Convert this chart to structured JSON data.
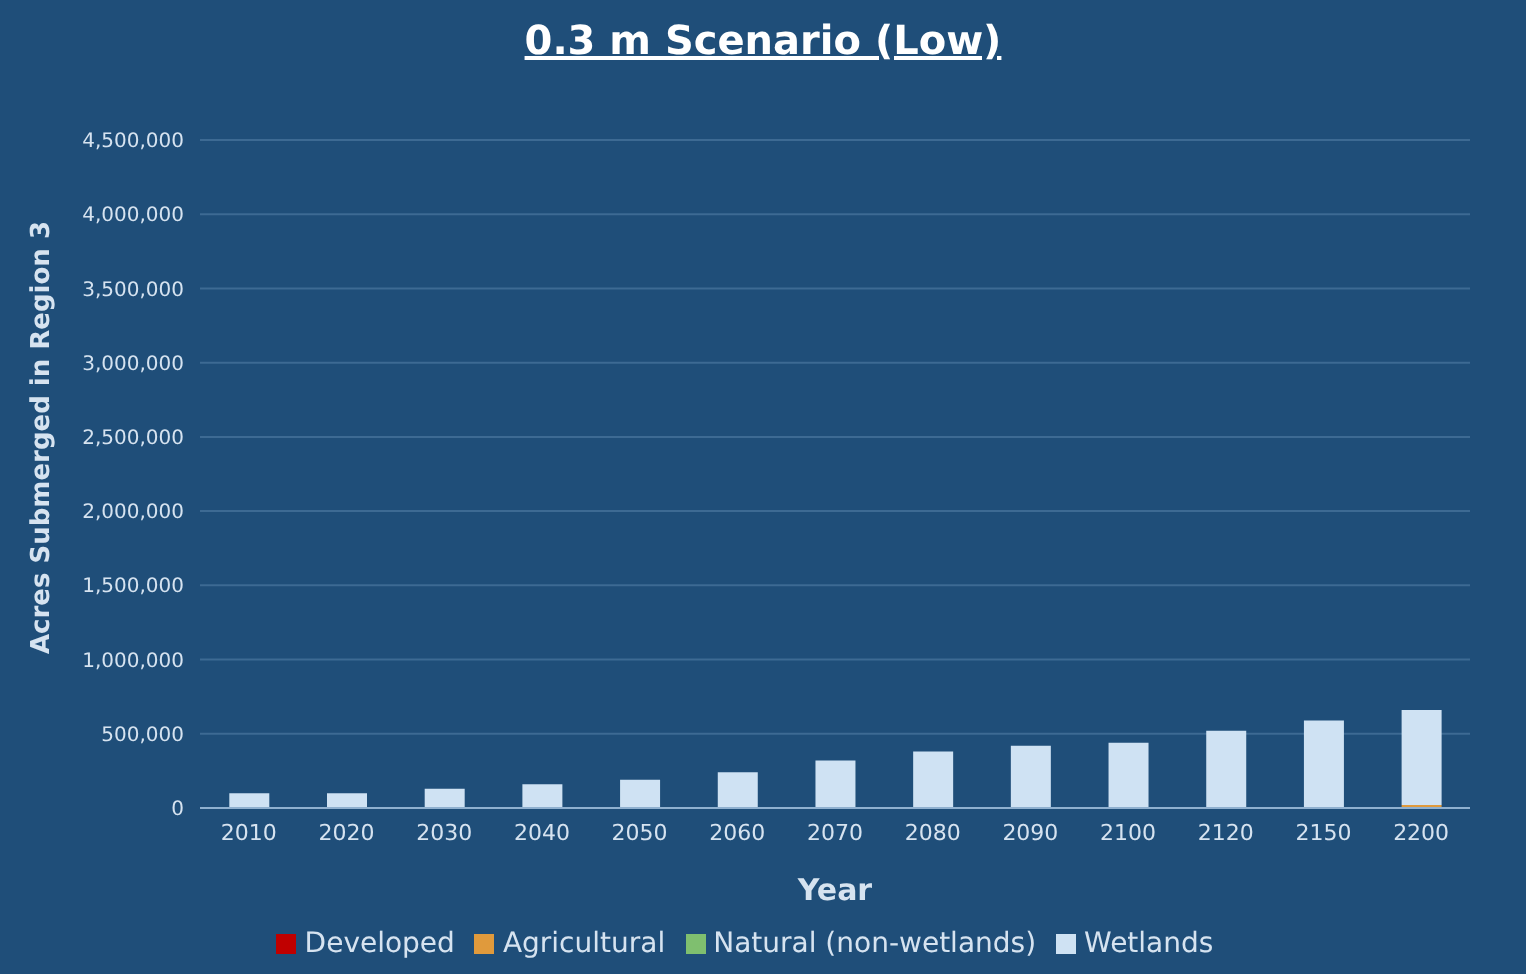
{
  "chart_data": {
    "type": "bar",
    "title": "0.3 m Scenario (Low)",
    "xlabel": "Year",
    "ylabel": "Acres Submerged in Region 3",
    "categories": [
      "2010",
      "2020",
      "2030",
      "2040",
      "2050",
      "2060",
      "2070",
      "2080",
      "2090",
      "2100",
      "2120",
      "2150",
      "2200"
    ],
    "stacked": true,
    "series": [
      {
        "name": "Developed",
        "color": "#c00000",
        "values": [
          0,
          0,
          0,
          0,
          0,
          0,
          0,
          0,
          0,
          0,
          0,
          0,
          0
        ]
      },
      {
        "name": "Agricultural",
        "color": "#e09a3c",
        "values": [
          0,
          0,
          0,
          0,
          0,
          0,
          0,
          0,
          0,
          0,
          0,
          null,
          20000
        ]
      },
      {
        "name": "Natural (non-wetlands)",
        "color": "#7fbf6f",
        "values": [
          0,
          0,
          0,
          0,
          0,
          0,
          0,
          0,
          0,
          0,
          0,
          0,
          0
        ]
      },
      {
        "name": "Wetlands",
        "color": "#cfe2f3",
        "values": [
          100000,
          100000,
          130000,
          160000,
          190000,
          240000,
          320000,
          380000,
          420000,
          440000,
          520000,
          590000,
          640000
        ]
      }
    ],
    "ylim": [
      0,
      4500000
    ],
    "yticks": [
      0,
      {
        "value": 500000,
        "label": "500,000"
      },
      {
        "value": 1000000,
        "label": "1,000,000"
      },
      {
        "value": 1500000,
        "label": "1,500,000"
      },
      {
        "value": 2000000,
        "label": "2,000,000"
      },
      {
        "value": 2500000,
        "label": "2,500,000"
      },
      {
        "value": 3000000,
        "label": "3,000,000"
      },
      {
        "value": 3500000,
        "label": "3,500,000"
      },
      {
        "value": 4000000,
        "label": "4,000,000"
      },
      {
        "value": 4500000,
        "label": "4,500,000"
      }
    ],
    "grid": "y",
    "legend": "bottom"
  }
}
